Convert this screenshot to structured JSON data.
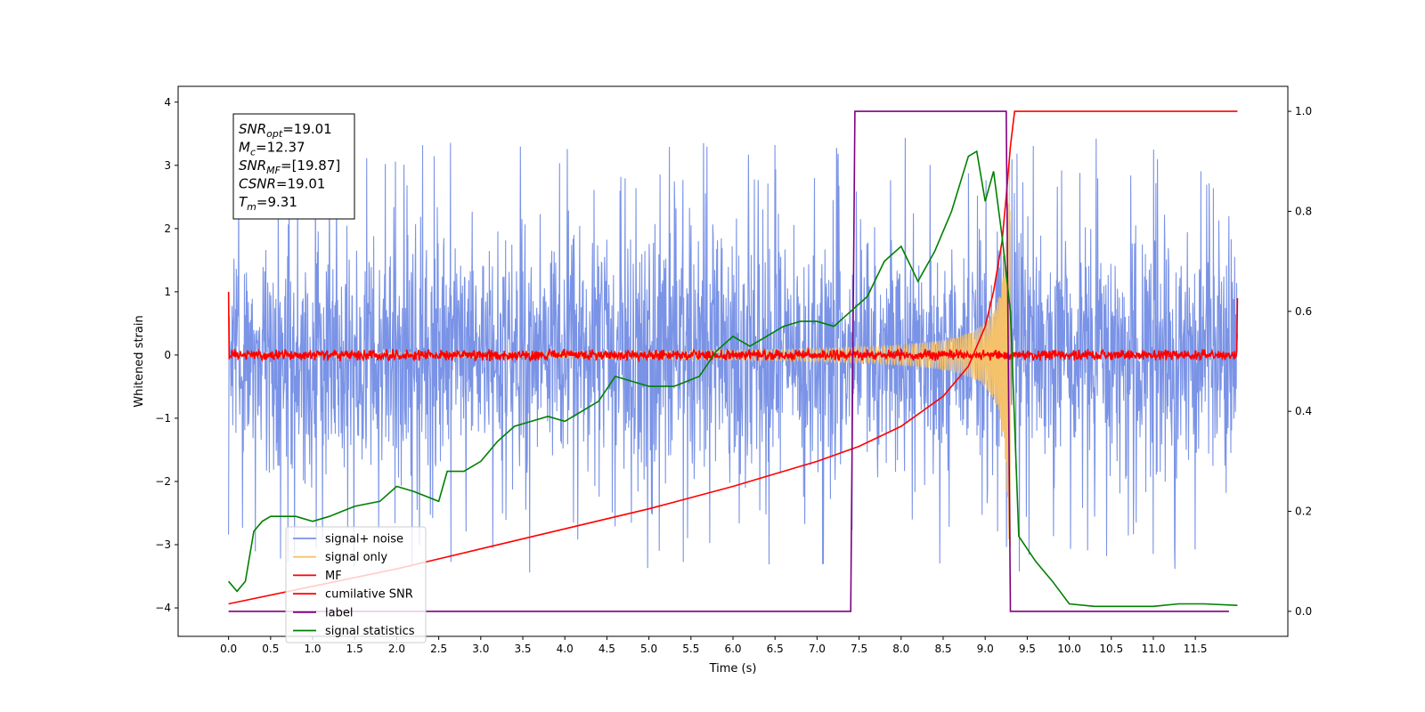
{
  "chart_data": {
    "type": "line",
    "xlabel": "Time (s)",
    "ylabel": "Whitened strain",
    "xlim": [
      -0.6,
      12.6
    ],
    "ylim": [
      -4.45,
      4.25
    ],
    "y2lim": [
      -0.05,
      1.05
    ],
    "x_ticks": [
      "0.0",
      "0.5",
      "1.0",
      "1.5",
      "2.0",
      "2.5",
      "3.0",
      "3.5",
      "4.0",
      "4.5",
      "5.0",
      "5.5",
      "6.0",
      "6.5",
      "7.0",
      "7.5",
      "8.0",
      "8.5",
      "9.0",
      "9.5",
      "10.0",
      "10.5",
      "11.0",
      "11.5"
    ],
    "y_ticks": [
      "4",
      "3",
      "2",
      "1",
      "0",
      "−1",
      "−2",
      "−3",
      "−4"
    ],
    "y2_ticks": [
      "1.0",
      "0.8",
      "0.6",
      "0.4",
      "0.2",
      "0.0"
    ],
    "annotation": [
      {
        "name": "SNR",
        "sub": "opt",
        "value": "=19.01"
      },
      {
        "name": "M",
        "sub": "c",
        "value": "=12.37"
      },
      {
        "name": "SNR",
        "sub": "MF",
        "value": "=[19.87]"
      },
      {
        "name": "CSNR",
        "sub": "",
        "value": "=19.01"
      },
      {
        "name": "T",
        "sub": "m",
        "value": "=9.31"
      }
    ],
    "legend_position": "lower-left",
    "series": [
      {
        "name": "signal+ noise",
        "color": "#7a93e6",
        "axis": "left",
        "kind": "noise",
        "amplitude": 1.6,
        "peak_range": [
          2.5,
          3.45
        ],
        "x_range": [
          0,
          12
        ]
      },
      {
        "name": "signal only",
        "color": "#f5c26b",
        "axis": "left",
        "kind": "chirp",
        "x_range": [
          0,
          9.3
        ],
        "merger_time": 9.31,
        "peak_amplitude": 3.1
      },
      {
        "name": "MF",
        "color": "#ff0000",
        "axis": "left",
        "kind": "mf",
        "x_range": [
          0,
          12
        ],
        "level": 0.0,
        "spread": 0.1
      },
      {
        "name": "cumilative SNR",
        "color": "#ff0000",
        "axis": "right",
        "x": [
          0,
          1,
          2,
          3,
          4,
          5,
          6,
          6.5,
          7,
          7.5,
          8,
          8.5,
          8.8,
          9,
          9.1,
          9.2,
          9.25,
          9.3,
          9.35,
          12
        ],
        "y": [
          0.015,
          0.05,
          0.085,
          0.125,
          0.165,
          0.205,
          0.25,
          0.275,
          0.3,
          0.33,
          0.37,
          0.43,
          0.49,
          0.57,
          0.64,
          0.74,
          0.83,
          0.93,
          1.0,
          1.0
        ]
      },
      {
        "name": "label",
        "color": "#800080",
        "axis": "right",
        "x": [
          0,
          7.4,
          7.45,
          9.25,
          9.3,
          11.9
        ],
        "y": [
          0.0,
          0.0,
          1.0,
          1.0,
          0.0,
          0.0
        ]
      },
      {
        "name": "signal statistics",
        "color": "#008000",
        "axis": "right",
        "x": [
          0,
          0.1,
          0.2,
          0.3,
          0.4,
          0.5,
          0.6,
          0.8,
          1.0,
          1.2,
          1.5,
          1.8,
          2.0,
          2.2,
          2.5,
          2.6,
          2.8,
          3.0,
          3.2,
          3.4,
          3.6,
          3.8,
          4.0,
          4.2,
          4.4,
          4.6,
          4.8,
          5.0,
          5.3,
          5.6,
          5.8,
          6.0,
          6.2,
          6.4,
          6.6,
          6.8,
          7.0,
          7.2,
          7.4,
          7.6,
          7.8,
          8.0,
          8.2,
          8.4,
          8.6,
          8.8,
          8.9,
          9.0,
          9.1,
          9.2,
          9.3,
          9.4,
          9.6,
          9.8,
          10.0,
          10.3,
          10.6,
          11.0,
          11.3,
          11.6,
          12
        ],
        "y": [
          0.06,
          0.04,
          0.06,
          0.16,
          0.18,
          0.19,
          0.19,
          0.19,
          0.18,
          0.19,
          0.21,
          0.22,
          0.25,
          0.24,
          0.22,
          0.28,
          0.28,
          0.3,
          0.34,
          0.37,
          0.38,
          0.39,
          0.38,
          0.4,
          0.42,
          0.47,
          0.46,
          0.45,
          0.45,
          0.47,
          0.52,
          0.55,
          0.53,
          0.55,
          0.57,
          0.58,
          0.58,
          0.57,
          0.6,
          0.63,
          0.7,
          0.73,
          0.66,
          0.72,
          0.8,
          0.91,
          0.92,
          0.82,
          0.88,
          0.75,
          0.6,
          0.15,
          0.1,
          0.06,
          0.015,
          0.01,
          0.01,
          0.01,
          0.015,
          0.015,
          0.012
        ]
      }
    ]
  }
}
